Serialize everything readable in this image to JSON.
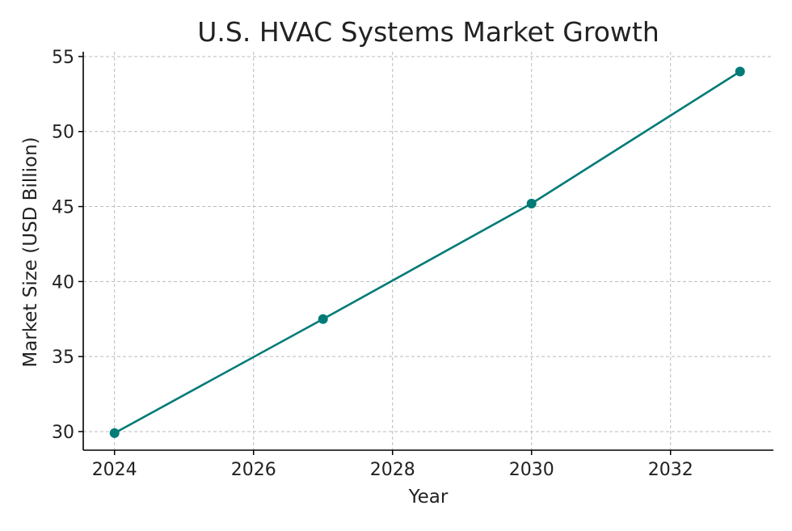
{
  "chart_data": {
    "type": "line",
    "title": "U.S. HVAC Systems Market Growth",
    "xlabel": "Year",
    "ylabel": "Market Size (USD Billion)",
    "x": [
      2024,
      2027,
      2030,
      2033
    ],
    "values": [
      29.9,
      37.5,
      45.2,
      54.0
    ],
    "xlim": [
      2023.55,
      2033.48
    ],
    "ylim": [
      28.76,
      55.32
    ],
    "xticks": [
      2024,
      2026,
      2028,
      2030,
      2032
    ],
    "yticks": [
      30,
      35,
      40,
      45,
      50,
      55
    ],
    "xtick_labels": [
      "2024",
      "2026",
      "2028",
      "2030",
      "2032"
    ],
    "ytick_labels": [
      "30",
      "35",
      "40",
      "45",
      "50",
      "55"
    ],
    "grid": true,
    "marker": "circle",
    "color": "#007b77"
  }
}
